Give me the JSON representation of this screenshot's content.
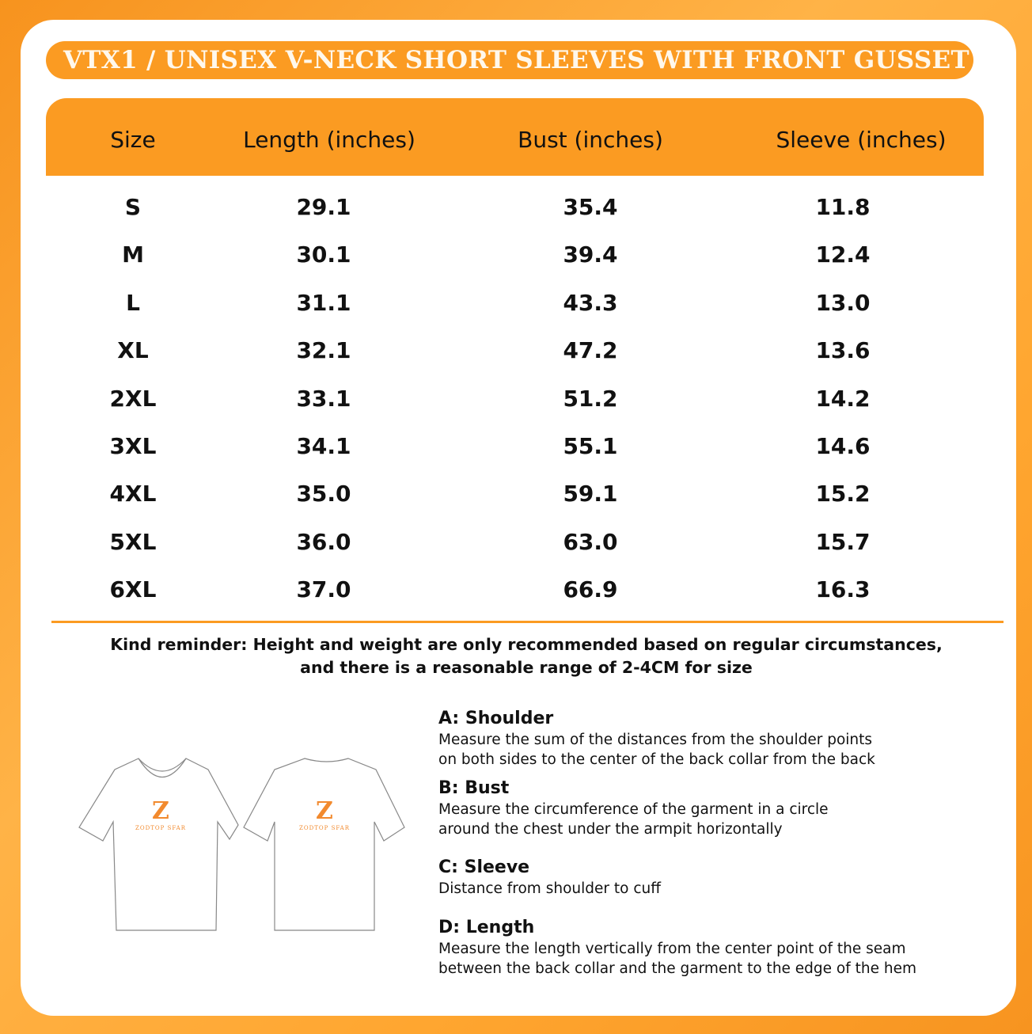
{
  "title": "VTX1 / UNISEX V-NECK SHORT SLEEVES WITH FRONT GUSSET",
  "colors": {
    "accent": "#fb9b22",
    "background": "#ffa630",
    "card": "#ffffff"
  },
  "table": {
    "headers": [
      "Size",
      "Length (inches)",
      "Bust (inches)",
      "Sleeve (inches)"
    ],
    "rows": [
      [
        "S",
        "29.1",
        "35.4",
        "11.8"
      ],
      [
        "M",
        "30.1",
        "39.4",
        "12.4"
      ],
      [
        "L",
        "31.1",
        "43.3",
        "13.0"
      ],
      [
        "XL",
        "32.1",
        "47.2",
        "13.6"
      ],
      [
        "2XL",
        "33.1",
        "51.2",
        "14.2"
      ],
      [
        "3XL",
        "34.1",
        "55.1",
        "14.6"
      ],
      [
        "4XL",
        "35.0",
        "59.1",
        "15.2"
      ],
      [
        "5XL",
        "36.0",
        "63.0",
        "15.7"
      ],
      [
        "6XL",
        "37.0",
        "66.9",
        "16.3"
      ]
    ]
  },
  "reminder": {
    "line1": "Kind reminder: Height and weight are only recommended based on regular circumstances,",
    "line2": "and there is a reasonable range of 2-4CM for size"
  },
  "logo_text": "ZODTOP SFAR",
  "measurements": [
    {
      "title": "A: Shoulder",
      "lines": [
        "Measure the sum of the distances from the shoulder points",
        "on both sides to the center of the back collar from the back"
      ]
    },
    {
      "title": "B: Bust",
      "lines": [
        "Measure the circumference of the garment in a circle",
        "around the chest under the armpit horizontally"
      ]
    },
    {
      "title": "C: Sleeve",
      "lines": [
        "Distance from shoulder to cuff"
      ]
    },
    {
      "title": "D: Length",
      "lines": [
        "Measure the length vertically from the center point of the seam",
        "between the back collar and the garment to the edge of the hem"
      ]
    }
  ]
}
